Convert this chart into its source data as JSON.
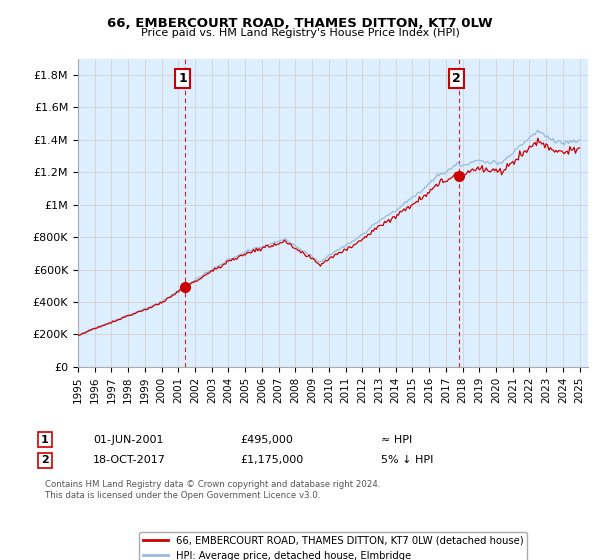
{
  "title": "66, EMBERCOURT ROAD, THAMES DITTON, KT7 0LW",
  "subtitle": "Price paid vs. HM Land Registry's House Price Index (HPI)",
  "ylabel_ticks": [
    "£0",
    "£200K",
    "£400K",
    "£600K",
    "£800K",
    "£1M",
    "£1.2M",
    "£1.4M",
    "£1.6M",
    "£1.8M"
  ],
  "ytick_values": [
    0,
    200000,
    400000,
    600000,
    800000,
    1000000,
    1200000,
    1400000,
    1600000,
    1800000
  ],
  "ylim": [
    0,
    1900000
  ],
  "xlim_start": 1995.0,
  "xlim_end": 2025.5,
  "xtick_years": [
    1995,
    1996,
    1997,
    1998,
    1999,
    2000,
    2001,
    2002,
    2003,
    2004,
    2005,
    2006,
    2007,
    2008,
    2009,
    2010,
    2011,
    2012,
    2013,
    2014,
    2015,
    2016,
    2017,
    2018,
    2019,
    2020,
    2021,
    2022,
    2023,
    2024,
    2025
  ],
  "sale1_x": 2001.417,
  "sale1_y": 495000,
  "sale1_label": "1",
  "sale1_date": "01-JUN-2001",
  "sale1_price": "£495,000",
  "sale1_hpi": "≈ HPI",
  "sale2_x": 2017.792,
  "sale2_y": 1175000,
  "sale2_label": "2",
  "sale2_date": "18-OCT-2017",
  "sale2_price": "£1,175,000",
  "sale2_hpi": "5% ↓ HPI",
  "red_line_color": "#cc0000",
  "blue_line_color": "#99bbdd",
  "dashed_line_color": "#cc0000",
  "grid_color": "#cccccc",
  "bg_color": "#ffffff",
  "chart_bg_color": "#ddeeff",
  "legend_label1": "66, EMBERCOURT ROAD, THAMES DITTON, KT7 0LW (detached house)",
  "legend_label2": "HPI: Average price, detached house, Elmbridge",
  "footer1": "Contains HM Land Registry data © Crown copyright and database right 2024.",
  "footer2": "This data is licensed under the Open Government Licence v3.0."
}
